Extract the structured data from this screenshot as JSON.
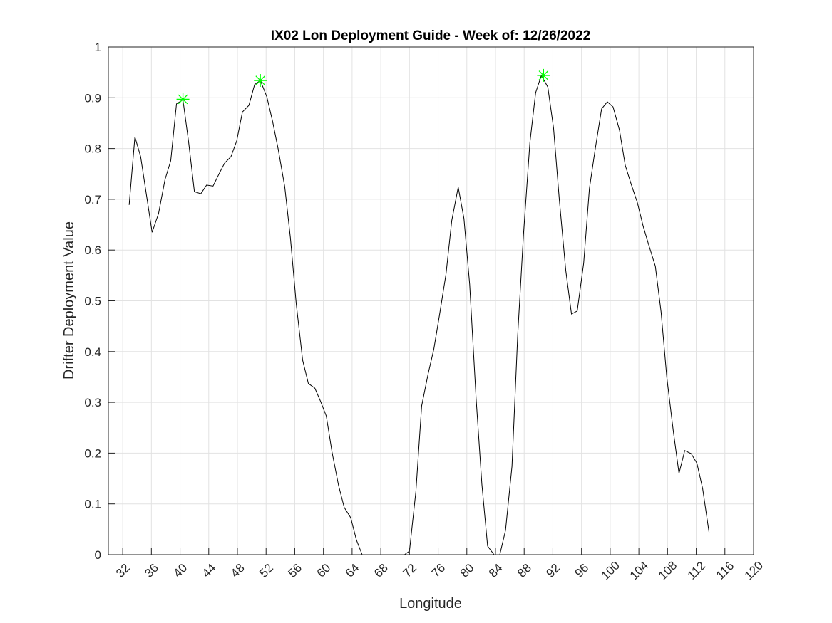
{
  "chart_data": {
    "type": "line",
    "title": "IX02 Lon Deployment Guide - Week of: 12/26/2022",
    "xlabel": "Longitude",
    "ylabel": "Drifter Deployment Value",
    "xlim": [
      30,
      120
    ],
    "ylim": [
      0,
      1
    ],
    "xticks": [
      32,
      36,
      40,
      44,
      48,
      52,
      56,
      60,
      64,
      68,
      72,
      76,
      80,
      84,
      88,
      92,
      96,
      100,
      104,
      108,
      112,
      116,
      120
    ],
    "yticks": [
      0,
      0.1,
      0.2,
      0.3,
      0.4,
      0.5,
      0.6,
      0.7,
      0.8,
      0.9,
      1
    ],
    "grid": true,
    "series": [
      {
        "type": "line",
        "color": "#000000",
        "x": [
          32.9,
          33.7,
          34.5,
          36.1,
          37.0,
          37.9,
          38.7,
          39.5,
          40.4,
          41.2,
          42.0,
          42.9,
          43.7,
          44.6,
          45.4,
          46.2,
          47.1,
          47.9,
          48.7,
          49.6,
          50.4,
          51.2,
          52.1,
          52.9,
          53.7,
          54.6,
          55.4,
          56.2,
          57.1,
          57.9,
          58.8,
          59.6,
          60.4,
          61.2,
          62.1,
          62.9,
          63.8,
          64.6,
          65.4,
          66.3,
          67.1,
          67.9,
          68.8,
          69.6,
          70.4,
          71.3,
          72.0,
          72.9,
          73.7,
          74.6,
          75.4,
          76.2,
          77.1,
          77.9,
          78.8,
          79.6,
          80.4,
          81.3,
          82.1,
          82.9,
          83.8,
          84.6,
          85.4,
          86.3,
          87.1,
          87.9,
          88.8,
          89.6,
          90.4,
          91.3,
          92.1,
          92.9,
          93.8,
          94.6,
          95.4,
          96.3,
          97.1,
          97.9,
          98.8,
          99.6,
          100.4,
          101.3,
          102.1,
          102.9,
          103.8,
          104.6,
          105.4,
          106.3,
          107.1,
          107.9,
          108.8,
          109.6,
          110.4,
          111.3,
          112.1,
          112.9,
          113.8
        ],
        "values": [
          0.689,
          0.823,
          0.784,
          0.635,
          0.672,
          0.739,
          0.776,
          0.888,
          0.896,
          0.812,
          0.715,
          0.711,
          0.728,
          0.726,
          0.749,
          0.771,
          0.784,
          0.815,
          0.872,
          0.885,
          0.926,
          0.934,
          0.902,
          0.854,
          0.798,
          0.725,
          0.623,
          0.495,
          0.383,
          0.337,
          0.328,
          0.302,
          0.273,
          0.202,
          0.137,
          0.093,
          0.073,
          0.029,
          0,
          0,
          0,
          0,
          0,
          0,
          0,
          0,
          0.007,
          0.125,
          0.293,
          0.356,
          0.405,
          0.473,
          0.553,
          0.658,
          0.724,
          0.662,
          0.532,
          0.307,
          0.139,
          0.017,
          0,
          0,
          0.048,
          0.174,
          0.433,
          0.63,
          0.812,
          0.91,
          0.944,
          0.921,
          0.84,
          0.7,
          0.56,
          0.474,
          0.48,
          0.574,
          0.721,
          0.798,
          0.878,
          0.892,
          0.882,
          0.836,
          0.767,
          0.731,
          0.693,
          0.647,
          0.609,
          0.568,
          0.478,
          0.349,
          0.244,
          0.16,
          0.205,
          0.199,
          0.18,
          0.13,
          0.043
        ]
      },
      {
        "type": "scatter",
        "color": "#00ff00",
        "marker": "asterisk",
        "x": [
          40.4,
          51.2,
          90.7
        ],
        "values": [
          0.897,
          0.934,
          0.944
        ]
      }
    ]
  }
}
